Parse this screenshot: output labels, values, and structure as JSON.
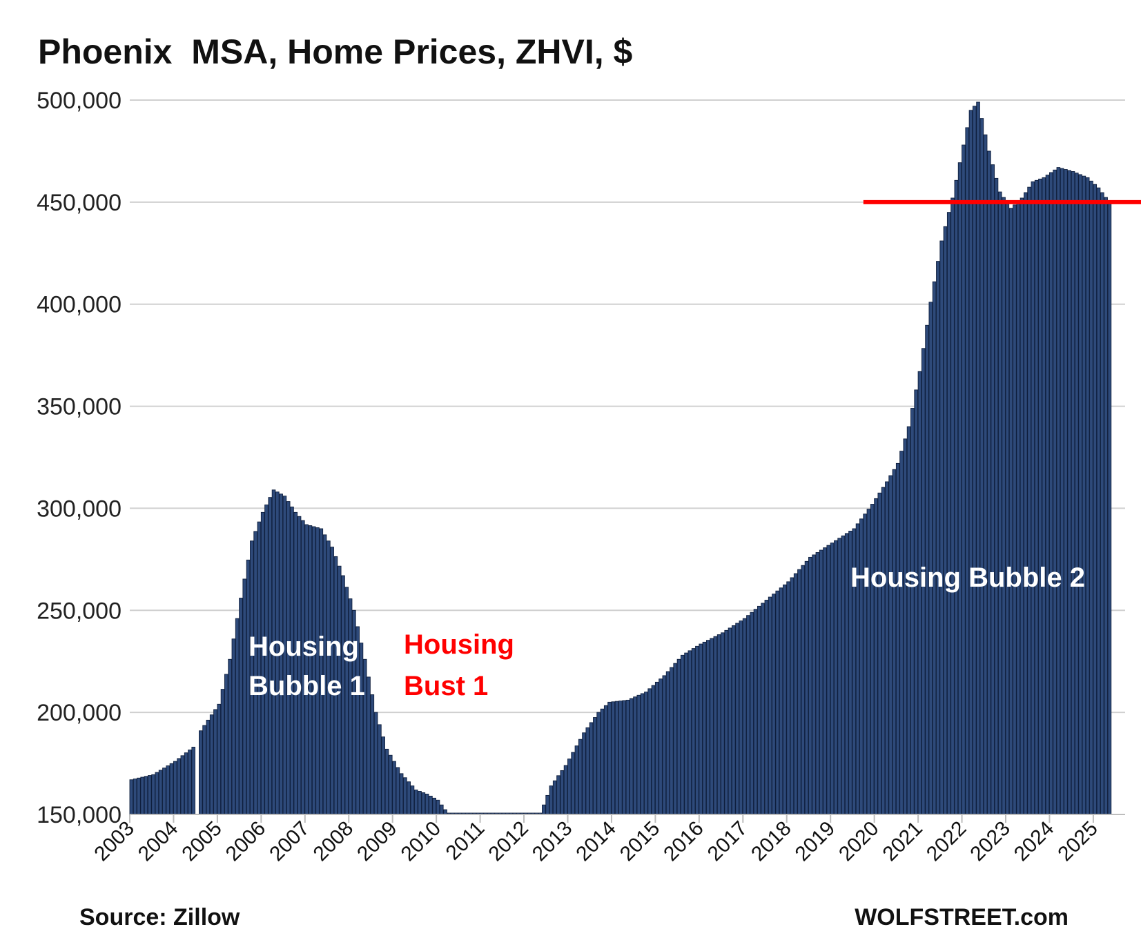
{
  "chart_data": {
    "type": "bar",
    "title": "Phoenix  MSA, Home Prices, ZHVI, $",
    "source_label": "Source: Zillow",
    "watermark": "WOLFSTREET.com",
    "xlabel": "",
    "ylabel": "",
    "ylim": [
      150000,
      500000
    ],
    "y_ticks": [
      "150,000",
      "200,000",
      "250,000",
      "300,000",
      "350,000",
      "400,000",
      "450,000",
      "500,000"
    ],
    "x_tick_labels": [
      "2003",
      "2004",
      "2005",
      "2006",
      "2007",
      "2008",
      "2009",
      "2010",
      "2011",
      "2012",
      "2013",
      "2014",
      "2015",
      "2016",
      "2017",
      "2018",
      "2019",
      "2020",
      "2021",
      "2022",
      "2023",
      "2024",
      "2025"
    ],
    "grid": true,
    "bar_color": "#2e4a7a",
    "bar_edge_color": "#0f1f3d",
    "reference_line": {
      "value": 450000,
      "color": "#ff0000",
      "from_date": "2019-10"
    },
    "annotations": [
      {
        "id": "bubble1-line1",
        "text": "Housing",
        "color": "#ffffff"
      },
      {
        "id": "bubble1-line2",
        "text": "Bubble 1",
        "color": "#ffffff"
      },
      {
        "id": "bust1-line1",
        "text": "Housing",
        "color": "#ff0000"
      },
      {
        "id": "bust1-line2",
        "text": "Bust 1",
        "color": "#ff0000"
      },
      {
        "id": "bubble2",
        "text": "Housing Bubble 2",
        "color": "#ffffff"
      }
    ],
    "anchors": [
      [
        "2003-01",
        167000
      ],
      [
        "2003-07",
        169500
      ],
      [
        "2004-01",
        176000
      ],
      [
        "2004-06",
        183000
      ],
      [
        "2004-07",
        null
      ],
      [
        "2004-08",
        191000
      ],
      [
        "2005-01",
        204000
      ],
      [
        "2005-04",
        226000
      ],
      [
        "2005-07",
        256000
      ],
      [
        "2005-10",
        284000
      ],
      [
        "2006-01",
        298000
      ],
      [
        "2006-04",
        309000
      ],
      [
        "2006-07",
        306000
      ],
      [
        "2006-10",
        298000
      ],
      [
        "2007-01",
        292000
      ],
      [
        "2007-05",
        290000
      ],
      [
        "2007-08",
        281000
      ],
      [
        "2007-11",
        267000
      ],
      [
        "2008-02",
        250000
      ],
      [
        "2008-05",
        226000
      ],
      [
        "2008-08",
        200000
      ],
      [
        "2008-11",
        182000
      ],
      [
        "2009-03",
        170000
      ],
      [
        "2009-07",
        162000
      ],
      [
        "2009-10",
        160000
      ],
      [
        "2010-01",
        157000
      ],
      [
        "2010-04",
        150000
      ],
      [
        "2012-05",
        150000
      ],
      [
        "2012-08",
        164000
      ],
      [
        "2012-12",
        174000
      ],
      [
        "2013-05",
        190000
      ],
      [
        "2013-09",
        200000
      ],
      [
        "2013-12",
        205000
      ],
      [
        "2014-05",
        206000
      ],
      [
        "2014-10",
        210000
      ],
      [
        "2015-03",
        218000
      ],
      [
        "2015-08",
        228000
      ],
      [
        "2016-01",
        233500
      ],
      [
        "2016-07",
        239000
      ],
      [
        "2017-01",
        246000
      ],
      [
        "2017-07",
        255000
      ],
      [
        "2018-01",
        264000
      ],
      [
        "2018-07",
        276000
      ],
      [
        "2019-01",
        283000
      ],
      [
        "2019-07",
        290000
      ],
      [
        "2019-12",
        302000
      ],
      [
        "2020-04",
        313000
      ],
      [
        "2020-07",
        322000
      ],
      [
        "2020-10",
        340000
      ],
      [
        "2021-01",
        367000
      ],
      [
        "2021-04",
        401000
      ],
      [
        "2021-07",
        431000
      ],
      [
        "2021-10",
        452000
      ],
      [
        "2022-01",
        478000
      ],
      [
        "2022-03",
        495000
      ],
      [
        "2022-05",
        499000
      ],
      [
        "2022-08",
        475000
      ],
      [
        "2022-11",
        455000
      ],
      [
        "2023-02",
        447000
      ],
      [
        "2023-05",
        452000
      ],
      [
        "2023-08",
        460000
      ],
      [
        "2023-11",
        462000
      ],
      [
        "2024-03",
        467000
      ],
      [
        "2024-07",
        465000
      ],
      [
        "2024-11",
        462000
      ],
      [
        "2025-02",
        457000
      ],
      [
        "2025-05",
        450000
      ]
    ]
  }
}
